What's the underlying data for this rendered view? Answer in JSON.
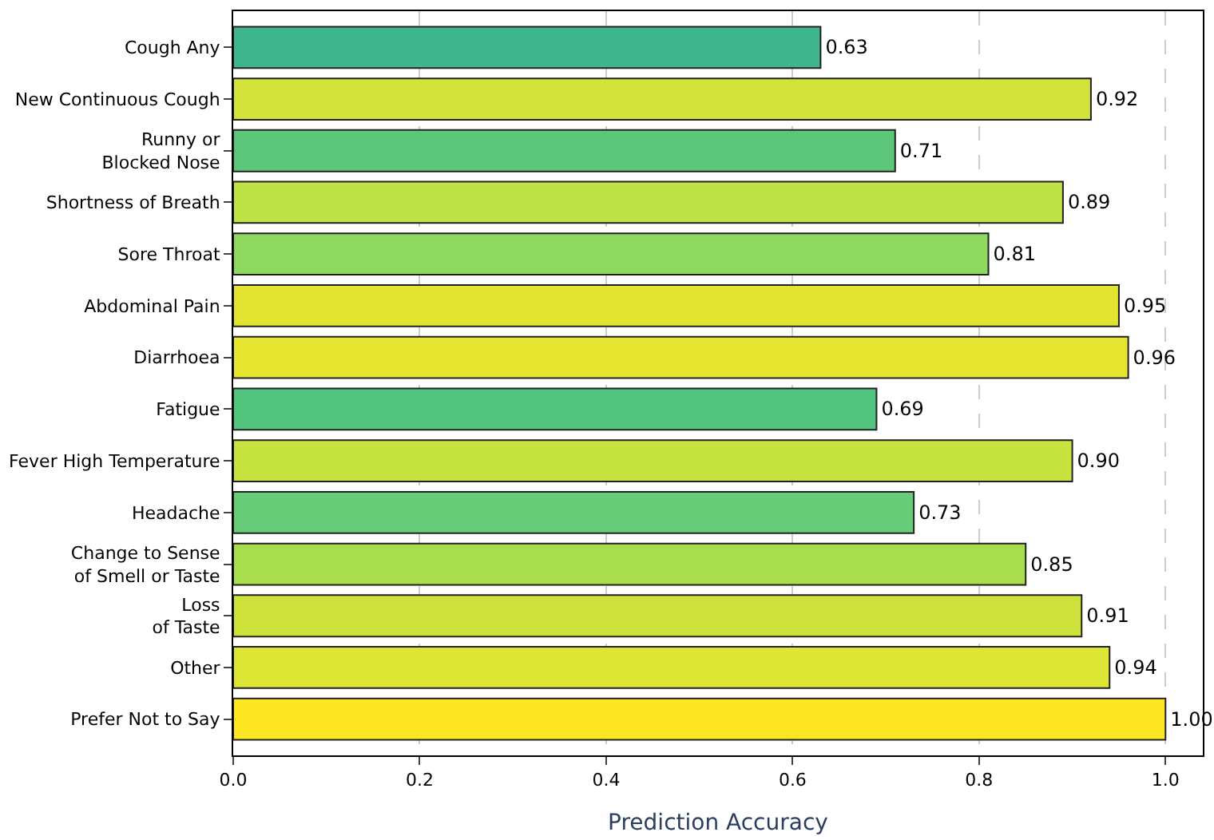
{
  "chart_data": {
    "type": "bar",
    "orientation": "horizontal",
    "xlabel": "Prediction Accuracy",
    "categories": [
      "Cough Any",
      "New Continuous Cough",
      "Runny or\nBlocked Nose",
      "Shortness of Breath",
      "Sore Throat",
      "Abdominal Pain",
      "Diarrhoea",
      "Fatigue",
      "Fever High Temperature",
      "Headache",
      "Change to Sense\nof Smell or Taste",
      "Loss\nof Taste",
      "Other",
      "Prefer Not to Say"
    ],
    "values": [
      0.63,
      0.92,
      0.71,
      0.89,
      0.81,
      0.95,
      0.96,
      0.69,
      0.9,
      0.73,
      0.85,
      0.91,
      0.94,
      1.0
    ],
    "value_labels": [
      "0.63",
      "0.92",
      "0.71",
      "0.89",
      "0.81",
      "0.95",
      "0.96",
      "0.69",
      "0.90",
      "0.73",
      "0.85",
      "0.91",
      "0.94",
      "1.00"
    ],
    "colors": [
      "#3fb68e",
      "#d3e33a",
      "#5cc77a",
      "#bde346",
      "#8fd960",
      "#e3e431",
      "#e6e52f",
      "#52c47e",
      "#c6e33f",
      "#66cc77",
      "#a8de4e",
      "#cde33c",
      "#dde535",
      "#fde725"
    ],
    "xlim": [
      0,
      1.04
    ],
    "xticks": [
      {
        "value": 0,
        "label": "0.0"
      },
      0.2,
      0.4,
      0.6,
      0.8,
      {
        "value": 1,
        "label": "1.0"
      }
    ],
    "grid": "x"
  }
}
